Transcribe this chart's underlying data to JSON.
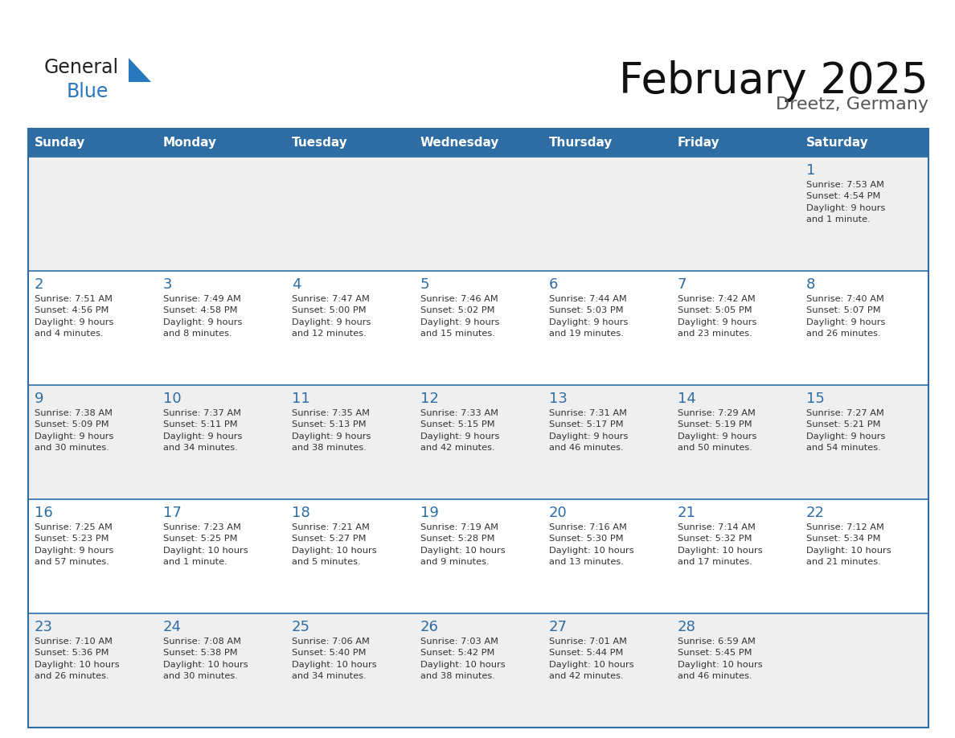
{
  "title": "February 2025",
  "subtitle": "Dreetz, Germany",
  "header_bg": "#2e6da4",
  "header_text_color": "#ffffff",
  "day_names": [
    "Sunday",
    "Monday",
    "Tuesday",
    "Wednesday",
    "Thursday",
    "Friday",
    "Saturday"
  ],
  "row_bg_even": "#efefef",
  "row_bg_odd": "#ffffff",
  "border_color": "#2e6da4",
  "day_num_color": "#2e6da4",
  "text_color": "#333333",
  "title_color": "#111111",
  "subtitle_color": "#555555",
  "logo_color_general": "#222222",
  "logo_color_blue": "#2878c0",
  "logo_triangle_color": "#2878c0",
  "calendar": [
    [
      {
        "day": "",
        "info": ""
      },
      {
        "day": "",
        "info": ""
      },
      {
        "day": "",
        "info": ""
      },
      {
        "day": "",
        "info": ""
      },
      {
        "day": "",
        "info": ""
      },
      {
        "day": "",
        "info": ""
      },
      {
        "day": "1",
        "info": "Sunrise: 7:53 AM\nSunset: 4:54 PM\nDaylight: 9 hours\nand 1 minute."
      }
    ],
    [
      {
        "day": "2",
        "info": "Sunrise: 7:51 AM\nSunset: 4:56 PM\nDaylight: 9 hours\nand 4 minutes."
      },
      {
        "day": "3",
        "info": "Sunrise: 7:49 AM\nSunset: 4:58 PM\nDaylight: 9 hours\nand 8 minutes."
      },
      {
        "day": "4",
        "info": "Sunrise: 7:47 AM\nSunset: 5:00 PM\nDaylight: 9 hours\nand 12 minutes."
      },
      {
        "day": "5",
        "info": "Sunrise: 7:46 AM\nSunset: 5:02 PM\nDaylight: 9 hours\nand 15 minutes."
      },
      {
        "day": "6",
        "info": "Sunrise: 7:44 AM\nSunset: 5:03 PM\nDaylight: 9 hours\nand 19 minutes."
      },
      {
        "day": "7",
        "info": "Sunrise: 7:42 AM\nSunset: 5:05 PM\nDaylight: 9 hours\nand 23 minutes."
      },
      {
        "day": "8",
        "info": "Sunrise: 7:40 AM\nSunset: 5:07 PM\nDaylight: 9 hours\nand 26 minutes."
      }
    ],
    [
      {
        "day": "9",
        "info": "Sunrise: 7:38 AM\nSunset: 5:09 PM\nDaylight: 9 hours\nand 30 minutes."
      },
      {
        "day": "10",
        "info": "Sunrise: 7:37 AM\nSunset: 5:11 PM\nDaylight: 9 hours\nand 34 minutes."
      },
      {
        "day": "11",
        "info": "Sunrise: 7:35 AM\nSunset: 5:13 PM\nDaylight: 9 hours\nand 38 minutes."
      },
      {
        "day": "12",
        "info": "Sunrise: 7:33 AM\nSunset: 5:15 PM\nDaylight: 9 hours\nand 42 minutes."
      },
      {
        "day": "13",
        "info": "Sunrise: 7:31 AM\nSunset: 5:17 PM\nDaylight: 9 hours\nand 46 minutes."
      },
      {
        "day": "14",
        "info": "Sunrise: 7:29 AM\nSunset: 5:19 PM\nDaylight: 9 hours\nand 50 minutes."
      },
      {
        "day": "15",
        "info": "Sunrise: 7:27 AM\nSunset: 5:21 PM\nDaylight: 9 hours\nand 54 minutes."
      }
    ],
    [
      {
        "day": "16",
        "info": "Sunrise: 7:25 AM\nSunset: 5:23 PM\nDaylight: 9 hours\nand 57 minutes."
      },
      {
        "day": "17",
        "info": "Sunrise: 7:23 AM\nSunset: 5:25 PM\nDaylight: 10 hours\nand 1 minute."
      },
      {
        "day": "18",
        "info": "Sunrise: 7:21 AM\nSunset: 5:27 PM\nDaylight: 10 hours\nand 5 minutes."
      },
      {
        "day": "19",
        "info": "Sunrise: 7:19 AM\nSunset: 5:28 PM\nDaylight: 10 hours\nand 9 minutes."
      },
      {
        "day": "20",
        "info": "Sunrise: 7:16 AM\nSunset: 5:30 PM\nDaylight: 10 hours\nand 13 minutes."
      },
      {
        "day": "21",
        "info": "Sunrise: 7:14 AM\nSunset: 5:32 PM\nDaylight: 10 hours\nand 17 minutes."
      },
      {
        "day": "22",
        "info": "Sunrise: 7:12 AM\nSunset: 5:34 PM\nDaylight: 10 hours\nand 21 minutes."
      }
    ],
    [
      {
        "day": "23",
        "info": "Sunrise: 7:10 AM\nSunset: 5:36 PM\nDaylight: 10 hours\nand 26 minutes."
      },
      {
        "day": "24",
        "info": "Sunrise: 7:08 AM\nSunset: 5:38 PM\nDaylight: 10 hours\nand 30 minutes."
      },
      {
        "day": "25",
        "info": "Sunrise: 7:06 AM\nSunset: 5:40 PM\nDaylight: 10 hours\nand 34 minutes."
      },
      {
        "day": "26",
        "info": "Sunrise: 7:03 AM\nSunset: 5:42 PM\nDaylight: 10 hours\nand 38 minutes."
      },
      {
        "day": "27",
        "info": "Sunrise: 7:01 AM\nSunset: 5:44 PM\nDaylight: 10 hours\nand 42 minutes."
      },
      {
        "day": "28",
        "info": "Sunrise: 6:59 AM\nSunset: 5:45 PM\nDaylight: 10 hours\nand 46 minutes."
      },
      {
        "day": "",
        "info": ""
      }
    ]
  ]
}
